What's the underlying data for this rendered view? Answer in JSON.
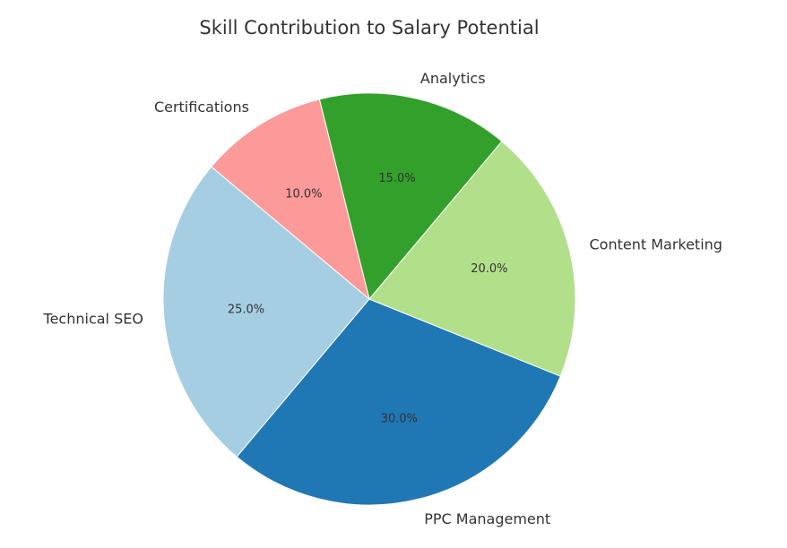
{
  "chart_data": {
    "type": "pie",
    "title": "Skill Contribution to Salary Potential",
    "slices": [
      {
        "label": "Technical SEO",
        "value": 25.0,
        "pct_label": "25.0%",
        "color": "#a6cee3"
      },
      {
        "label": "PPC Management",
        "value": 30.0,
        "pct_label": "30.0%",
        "color": "#1f78b4"
      },
      {
        "label": "Content Marketing",
        "value": 20.0,
        "pct_label": "20.0%",
        "color": "#b2df8a"
      },
      {
        "label": "Analytics",
        "value": 15.0,
        "pct_label": "15.0%",
        "color": "#33a02c"
      },
      {
        "label": "Certifications",
        "value": 10.0,
        "pct_label": "10.0%",
        "color": "#fb9a99"
      }
    ],
    "start_angle_deg": 140,
    "direction": "counterclockwise",
    "legend": "none"
  }
}
